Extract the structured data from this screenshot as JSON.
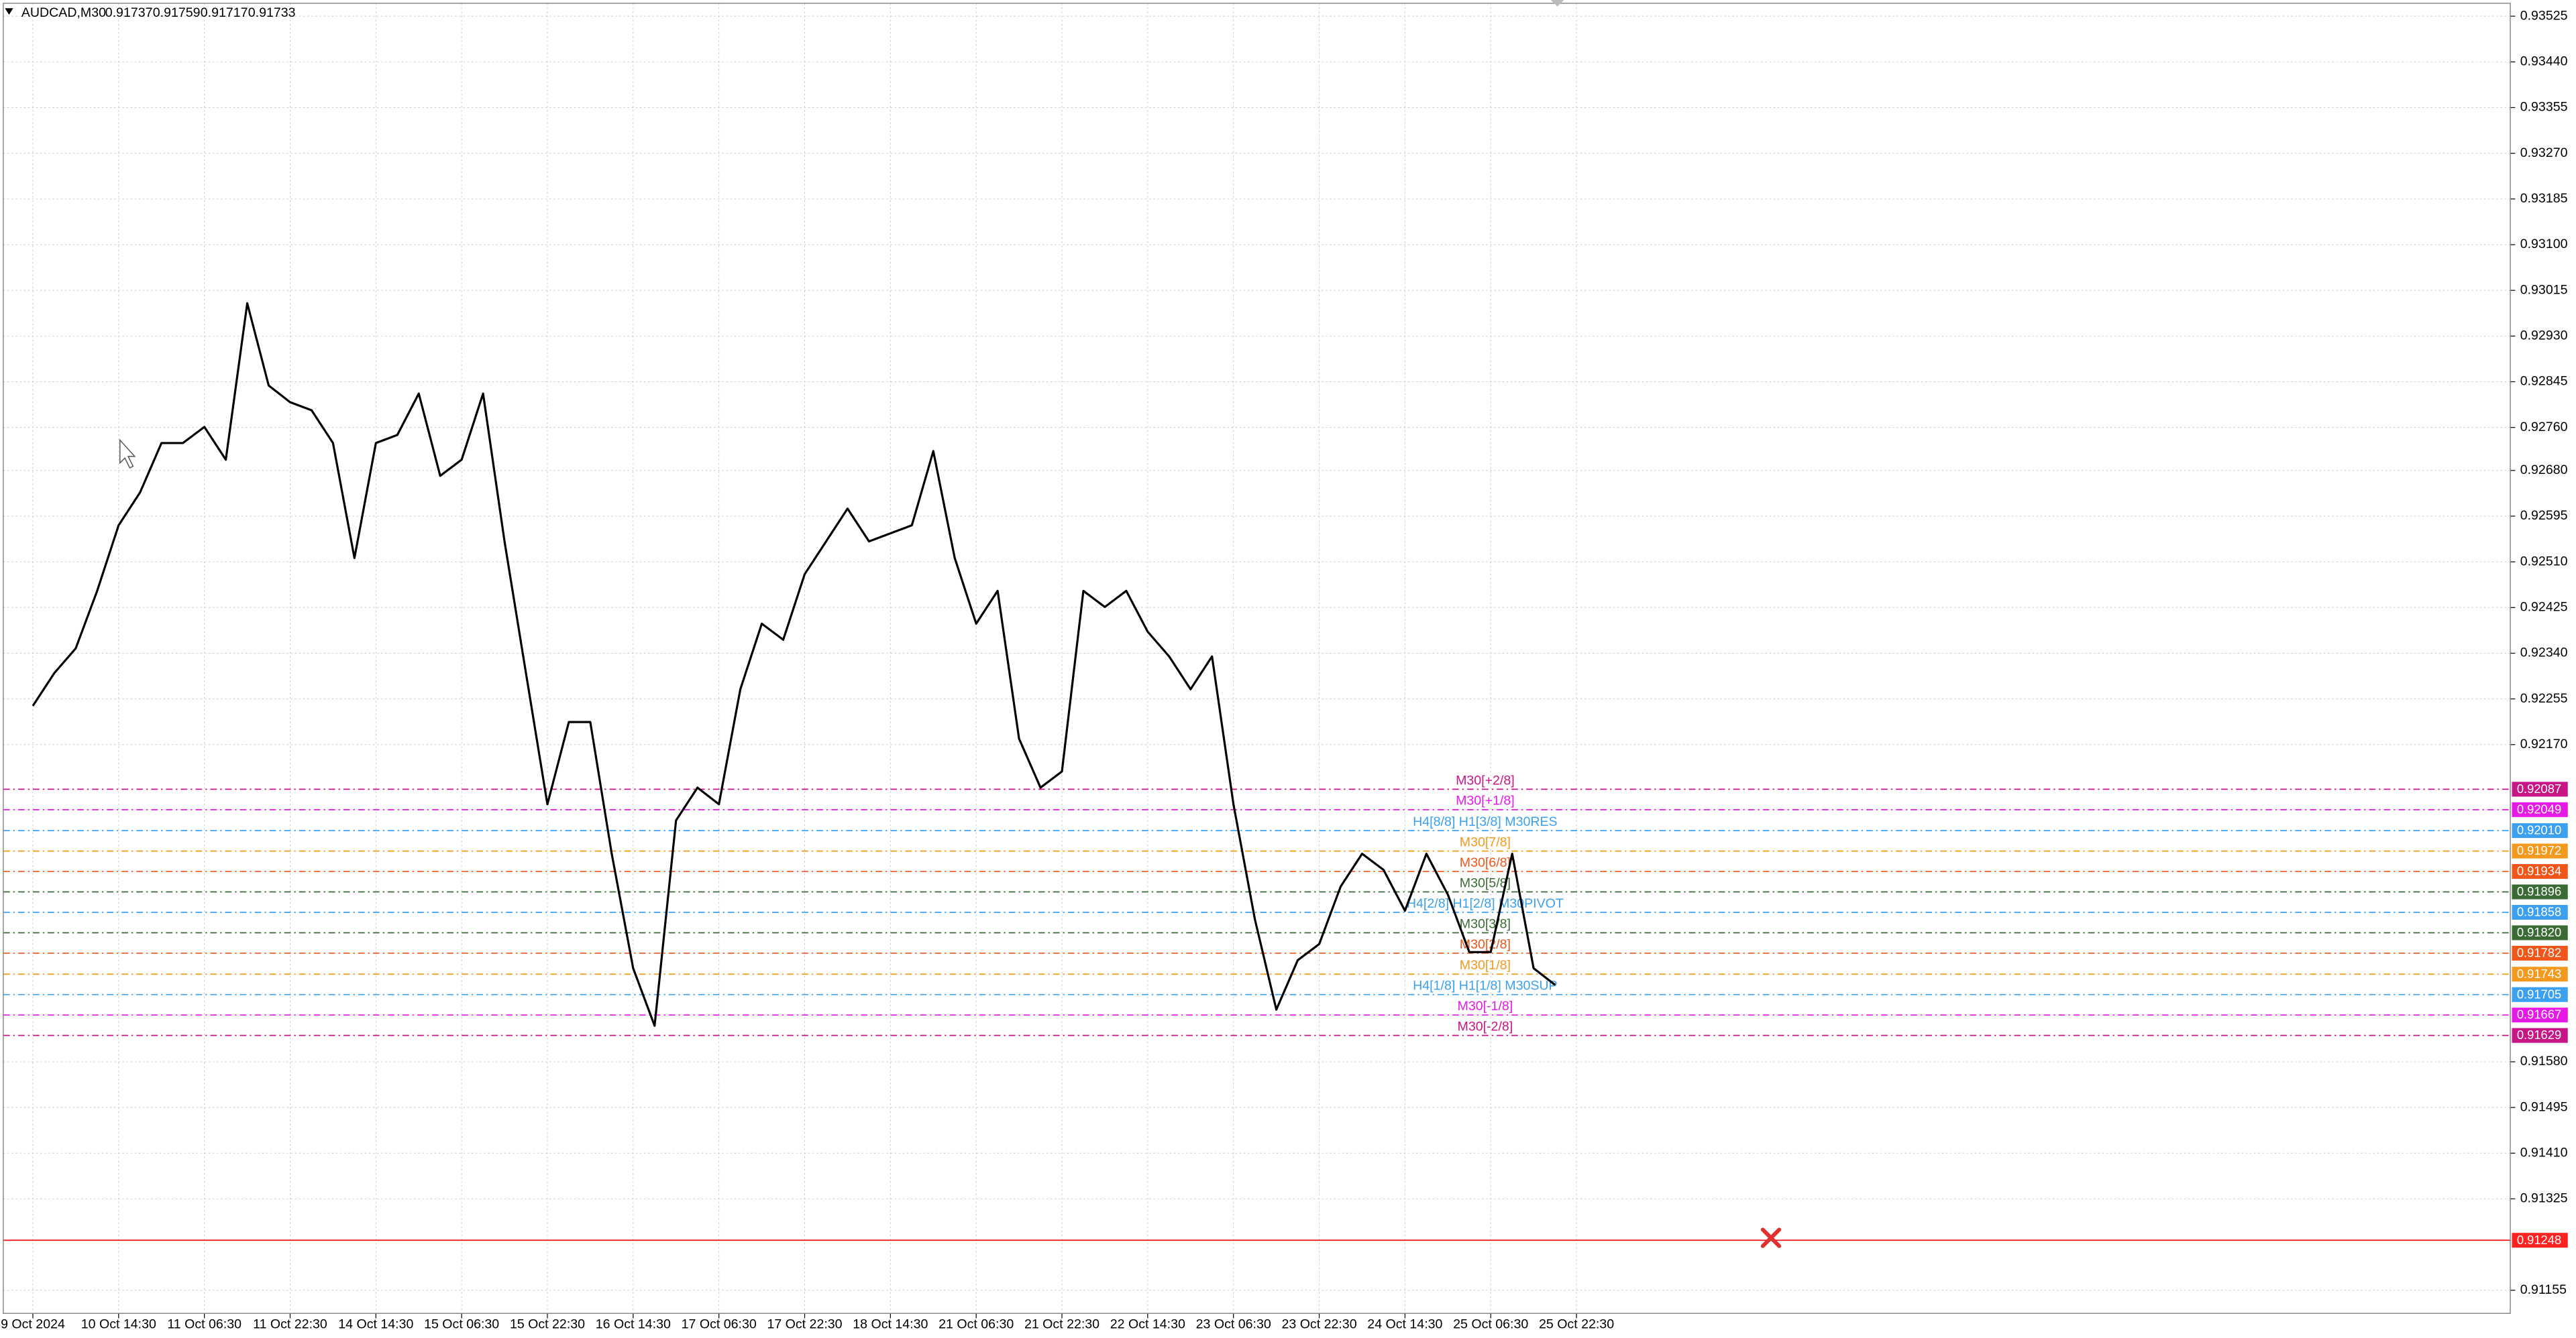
{
  "chart_data": {
    "type": "line",
    "symbol": "AUDCAD,M30",
    "ohlc": [
      0.91737,
      0.91759,
      0.91717,
      0.91733
    ],
    "categories": [
      "9 Oct 2024",
      null,
      null,
      null,
      "10 Oct 14:30",
      null,
      null,
      null,
      "11 Oct 06:30",
      null,
      null,
      null,
      "11 Oct 22:30",
      null,
      null,
      null,
      "14 Oct 14:30",
      null,
      null,
      null,
      "15 Oct 06:30",
      null,
      null,
      null,
      "15 Oct 22:30",
      null,
      null,
      null,
      "16 Oct 14:30",
      null,
      null,
      null,
      "17 Oct 06:30",
      null,
      null,
      null,
      "17 Oct 22:30",
      null,
      null,
      null,
      "18 Oct 14:30",
      null,
      null,
      null,
      "21 Oct 06:30",
      null,
      null,
      null,
      "21 Oct 22:30",
      null,
      null,
      null,
      "22 Oct 14:30",
      null,
      null,
      null,
      "23 Oct 06:30",
      null,
      null,
      null,
      "23 Oct 22:30",
      null,
      null,
      null,
      "24 Oct 14:30",
      null,
      null,
      null,
      "25 Oct 06:30",
      null,
      null,
      null,
      "25 Oct 22:30"
    ],
    "series": [
      {
        "color": "#000000",
        "values": [
          0.92242,
          0.92303,
          0.92349,
          0.92456,
          0.92578,
          0.92639,
          0.92731,
          0.92731,
          0.92761,
          0.927,
          0.92991,
          0.92838,
          0.92807,
          0.92792,
          0.92731,
          0.92517,
          0.92731,
          0.92746,
          0.92823,
          0.9267,
          0.927,
          0.92823,
          0.92548,
          0.92303,
          0.92059,
          0.92212,
          0.92212,
          0.91967,
          0.91754,
          0.91647,
          0.92029,
          0.9209,
          0.92059,
          0.92273,
          0.92395,
          0.92365,
          0.92487,
          0.92548,
          0.92609,
          0.92548,
          0.92563,
          0.92578,
          0.92716,
          0.92517,
          0.92395,
          0.92456,
          0.92181,
          0.9209,
          0.9212,
          0.92456,
          0.92426,
          0.92456,
          0.9238,
          0.92334,
          0.92273,
          0.92334,
          0.92059,
          0.91845,
          0.91677,
          0.91769,
          0.91799,
          0.91906,
          0.91967,
          0.91937,
          0.91861,
          0.91967,
          0.91891,
          0.91784,
          0.91784,
          0.91967,
          0.91754,
          0.91723,
          null
        ]
      }
    ],
    "ylim": [
      0.91112,
      0.93549
    ],
    "yticks": [
      {
        "value": 0.93525,
        "label": "0.93525"
      },
      {
        "value": 0.9344,
        "label": "0.93440"
      },
      {
        "value": 0.93355,
        "label": "0.93355"
      },
      {
        "value": 0.9327,
        "label": "0.93270"
      },
      {
        "value": 0.93185,
        "label": "0.93185"
      },
      {
        "value": 0.931,
        "label": "0.93100"
      },
      {
        "value": 0.93015,
        "label": "0.93015"
      },
      {
        "value": 0.9293,
        "label": "0.92930"
      },
      {
        "value": 0.92845,
        "label": "0.92845"
      },
      {
        "value": 0.9276,
        "label": "0.92760"
      },
      {
        "value": 0.9268,
        "label": "0.92680"
      },
      {
        "value": 0.92595,
        "label": "0.92595"
      },
      {
        "value": 0.9251,
        "label": "0.92510"
      },
      {
        "value": 0.92425,
        "label": "0.92425"
      },
      {
        "value": 0.9234,
        "label": "0.92340"
      },
      {
        "value": 0.92255,
        "label": "0.92255"
      },
      {
        "value": 0.9217,
        "label": "0.92170"
      },
      {
        "value": 0.9158,
        "label": "0.91580"
      },
      {
        "value": 0.91495,
        "label": "0.91495"
      },
      {
        "value": 0.9141,
        "label": "0.91410"
      },
      {
        "value": 0.91325,
        "label": "0.91325"
      },
      {
        "value": 0.91155,
        "label": "0.91155"
      }
    ],
    "grid": true,
    "levels": [
      {
        "name": "M30[+2/8]",
        "value": 0.92087,
        "value_label": "0.92087",
        "color": "#c71585"
      },
      {
        "name": "M30[+1/8]",
        "value": 0.92049,
        "value_label": "0.92049",
        "color": "#e619e6"
      },
      {
        "name": "H4[8/8] H1[3/8] M30RES",
        "value": 0.9201,
        "value_label": "0.92010",
        "color": "#3ba0f0"
      },
      {
        "name": "M30[7/8]",
        "value": 0.91972,
        "value_label": "0.91972",
        "color": "#f39a1e"
      },
      {
        "name": "M30[6/8]",
        "value": 0.91934,
        "value_label": "0.91934",
        "color": "#f0561a"
      },
      {
        "name": "M30[5/8]",
        "value": 0.91896,
        "value_label": "0.91896",
        "color": "#3a6b35"
      },
      {
        "name": "H4[2/8] H1[2/8] M30PIVOT",
        "value": 0.91858,
        "value_label": "0.91858",
        "color": "#3ba0f0"
      },
      {
        "name": "M30[3/8]",
        "value": 0.9182,
        "value_label": "0.91820",
        "color": "#3a6b35"
      },
      {
        "name": "M30[2/8]",
        "value": 0.91782,
        "value_label": "0.91782",
        "color": "#f0561a"
      },
      {
        "name": "M30[1/8]",
        "value": 0.91743,
        "value_label": "0.91743",
        "color": "#f39a1e"
      },
      {
        "name": "H4[1/8] H1[1/8] M30SUP",
        "value": 0.91705,
        "value_label": "0.91705",
        "color": "#3ba0f0"
      },
      {
        "name": "M30[-1/8]",
        "value": 0.91667,
        "value_label": "0.91667",
        "color": "#e619e6"
      },
      {
        "name": "M30[-2/8]",
        "value": 0.91629,
        "value_label": "0.91629",
        "color": "#c71585"
      }
    ],
    "stop_line": {
      "value": 0.91248,
      "color": "#ff2020"
    }
  }
}
